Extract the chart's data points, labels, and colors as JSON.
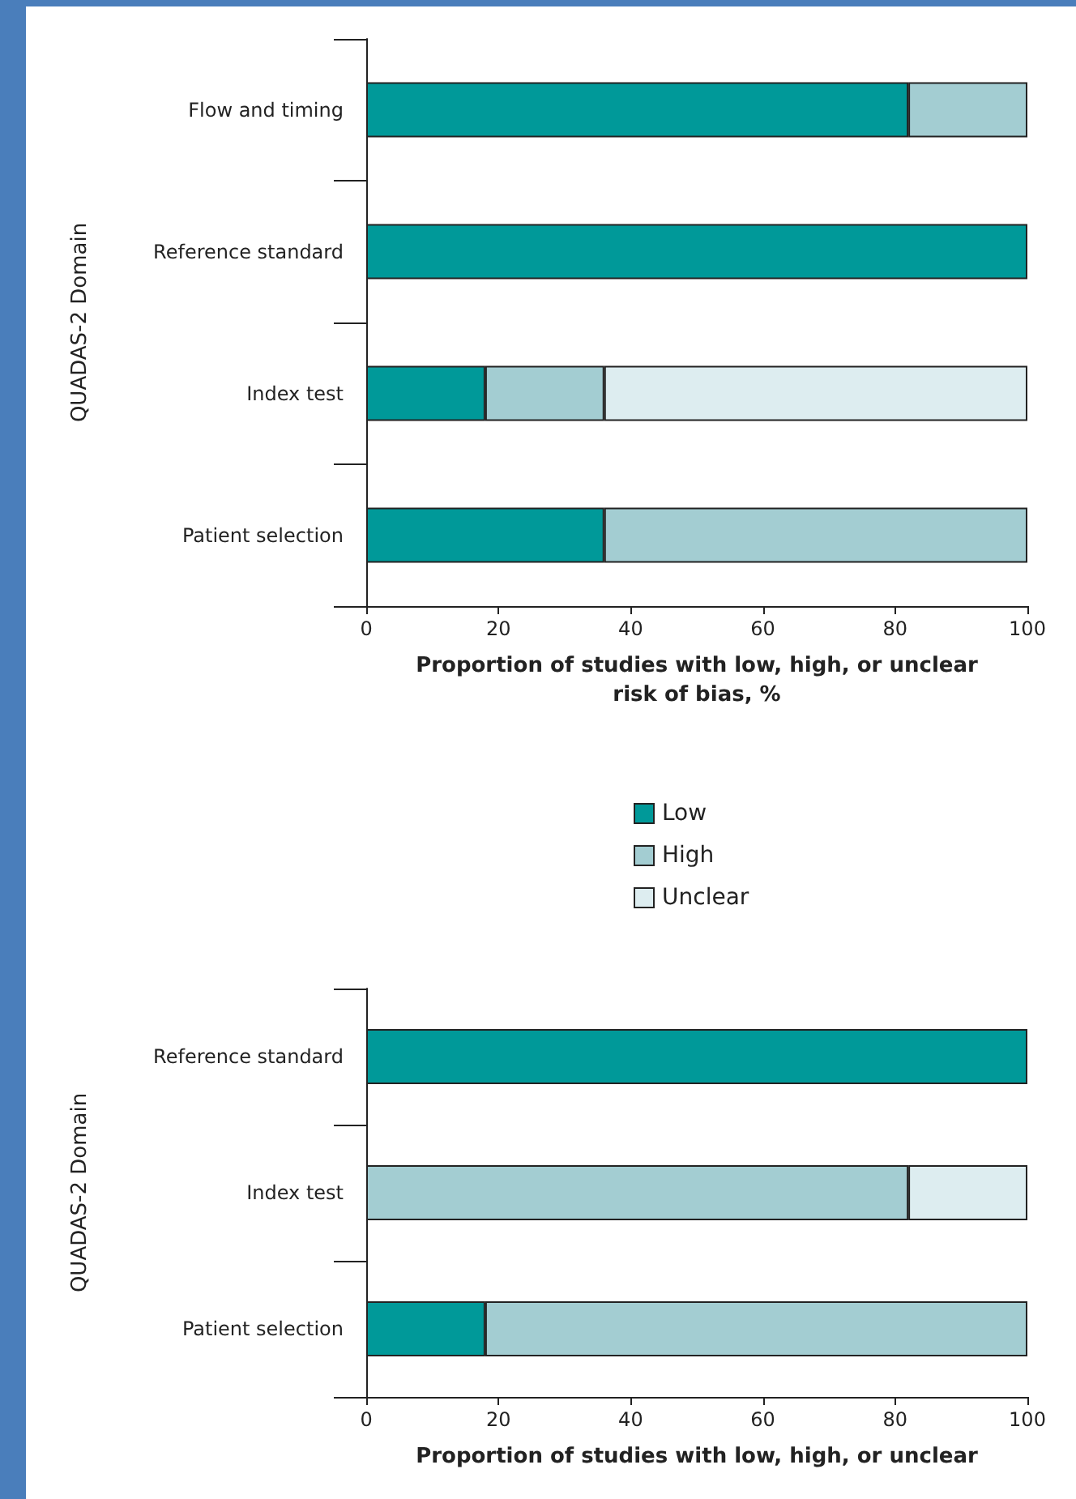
{
  "chart_data": [
    {
      "type": "bar",
      "orientation": "horizontal",
      "stacked": true,
      "categories": [
        "Flow and timing",
        "Reference standard",
        "Index test",
        "Patient selection"
      ],
      "xlabel": "Proportion of studies with low, high, or unclear\nrisk of bias, %",
      "ylabel": "QUADAS-2 Domain",
      "xlim": [
        0,
        100
      ],
      "xticks": [
        0,
        20,
        40,
        60,
        80,
        100
      ],
      "legend": "bottom",
      "grid": false,
      "series": [
        {
          "name": "Low",
          "color": "#009999",
          "values": [
            82,
            100,
            18,
            36
          ]
        },
        {
          "name": "High",
          "color": "#a3cdd2",
          "values": [
            18,
            null,
            18,
            64
          ]
        },
        {
          "name": "Unclear",
          "color": "#ddedf0",
          "values": [
            null,
            null,
            64,
            null
          ]
        }
      ]
    },
    {
      "type": "bar",
      "orientation": "horizontal",
      "stacked": true,
      "categories": [
        "Reference standard",
        "Index test",
        "Patient selection"
      ],
      "xlabel": "Proportion of studies with low, high, or unclear",
      "ylabel": "QUADAS-2 Domain",
      "xlim": [
        0,
        100
      ],
      "xticks": [
        0,
        20,
        40,
        60,
        80,
        100
      ],
      "legend": false,
      "grid": false,
      "series": [
        {
          "color": "#009999",
          "values": [
            100,
            null,
            18
          ]
        },
        {
          "color": "#a3cdd2",
          "values": [
            null,
            82,
            82
          ]
        },
        {
          "color": "#ddedf0",
          "values": [
            null,
            18,
            null
          ]
        }
      ]
    }
  ]
}
